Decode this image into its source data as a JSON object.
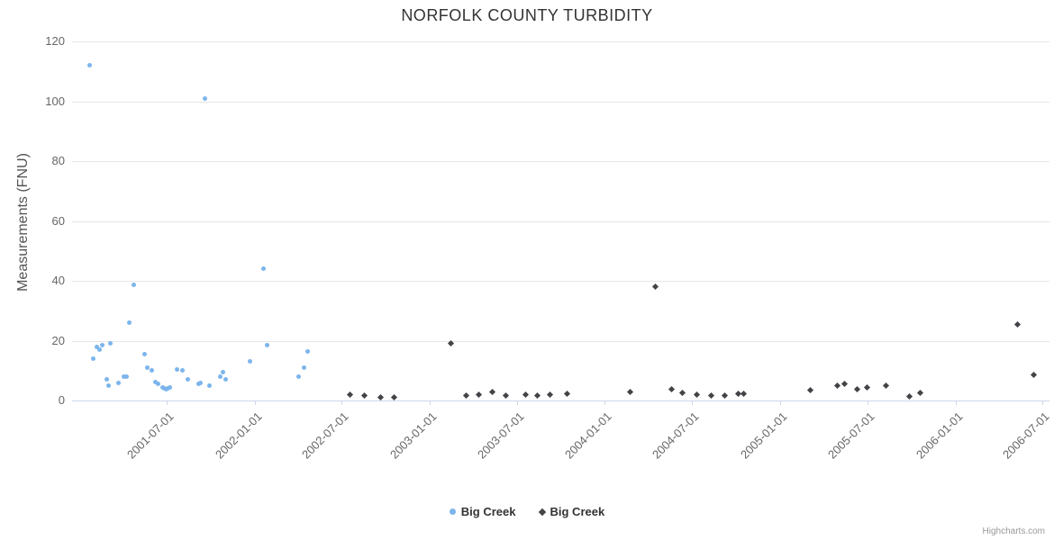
{
  "credits": "Highcharts.com",
  "chart_data": {
    "type": "scatter",
    "title": "NORFOLK COUNTY TURBIDITY",
    "xlabel": "",
    "ylabel": "Measurements (FNU)",
    "ylim": [
      0,
      120
    ],
    "y_ticks": [
      0,
      20,
      40,
      60,
      80,
      100,
      120
    ],
    "x_min": "2000-12-16",
    "x_max": "2006-07-16",
    "x_ticks": [
      "2001-07-01",
      "2002-01-01",
      "2002-07-01",
      "2003-01-01",
      "2003-07-01",
      "2004-01-01",
      "2004-07-01",
      "2005-01-01",
      "2005-07-01",
      "2006-01-01",
      "2006-07-01"
    ],
    "grid": true,
    "legend_position": "bottom",
    "series": [
      {
        "name": "Big Creek",
        "marker": "circle",
        "color": "#7cb5ec",
        "points": [
          [
            "2001-01-21",
            112
          ],
          [
            "2001-01-29",
            14
          ],
          [
            "2001-02-05",
            18
          ],
          [
            "2001-02-11",
            17
          ],
          [
            "2001-02-17",
            18.5
          ],
          [
            "2001-02-26",
            7
          ],
          [
            "2001-03-02",
            5
          ],
          [
            "2001-03-06",
            19
          ],
          [
            "2001-03-23",
            6
          ],
          [
            "2001-04-03",
            8
          ],
          [
            "2001-04-09",
            8
          ],
          [
            "2001-04-14",
            26
          ],
          [
            "2001-04-24",
            38.5
          ],
          [
            "2001-05-16",
            15.5
          ],
          [
            "2001-05-22",
            11
          ],
          [
            "2001-05-31",
            10
          ],
          [
            "2001-06-08",
            6.3
          ],
          [
            "2001-06-13",
            5.5
          ],
          [
            "2001-06-23",
            4.5
          ],
          [
            "2001-06-26",
            4
          ],
          [
            "2001-06-30",
            3.8
          ],
          [
            "2001-07-04",
            4
          ],
          [
            "2001-07-08",
            4.5
          ],
          [
            "2001-07-23",
            10.5
          ],
          [
            "2001-08-03",
            10
          ],
          [
            "2001-08-14",
            7
          ],
          [
            "2001-09-06",
            5.5
          ],
          [
            "2001-09-09",
            6
          ],
          [
            "2001-09-19",
            101
          ],
          [
            "2001-09-28",
            5
          ],
          [
            "2001-10-21",
            8
          ],
          [
            "2001-10-26",
            9.5
          ],
          [
            "2001-11-01",
            7
          ],
          [
            "2001-12-22",
            13
          ],
          [
            "2002-01-19",
            44
          ],
          [
            "2002-01-26",
            18.5
          ],
          [
            "2002-04-02",
            8
          ],
          [
            "2002-04-13",
            11
          ],
          [
            "2002-04-21",
            16.5
          ]
        ]
      },
      {
        "name": "Big Creek",
        "marker": "diamond",
        "color": "#434348",
        "points": [
          [
            "2002-07-18",
            2
          ],
          [
            "2002-08-17",
            1.8
          ],
          [
            "2002-09-20",
            1
          ],
          [
            "2002-10-18",
            1.2
          ],
          [
            "2003-02-13",
            19
          ],
          [
            "2003-03-17",
            1.8
          ],
          [
            "2003-04-14",
            2
          ],
          [
            "2003-05-12",
            3
          ],
          [
            "2003-06-09",
            1.8
          ],
          [
            "2003-07-19",
            2
          ],
          [
            "2003-08-14",
            1.8
          ],
          [
            "2003-09-09",
            2
          ],
          [
            "2003-10-15",
            2.2
          ],
          [
            "2004-02-23",
            3
          ],
          [
            "2004-04-16",
            38
          ],
          [
            "2004-05-19",
            3.8
          ],
          [
            "2004-06-11",
            2.5
          ],
          [
            "2004-07-11",
            2
          ],
          [
            "2004-08-10",
            1.8
          ],
          [
            "2004-09-07",
            1.8
          ],
          [
            "2004-10-05",
            2.2
          ],
          [
            "2004-10-16",
            2.2
          ],
          [
            "2005-03-04",
            3.5
          ],
          [
            "2005-04-30",
            5
          ],
          [
            "2005-05-15",
            5.5
          ],
          [
            "2005-06-10",
            3.8
          ],
          [
            "2005-07-01",
            4.5
          ],
          [
            "2005-08-09",
            5
          ],
          [
            "2005-09-27",
            1.5
          ],
          [
            "2005-10-19",
            2.5
          ],
          [
            "2006-05-10",
            25.5
          ],
          [
            "2006-06-13",
            8.5
          ]
        ]
      }
    ]
  }
}
